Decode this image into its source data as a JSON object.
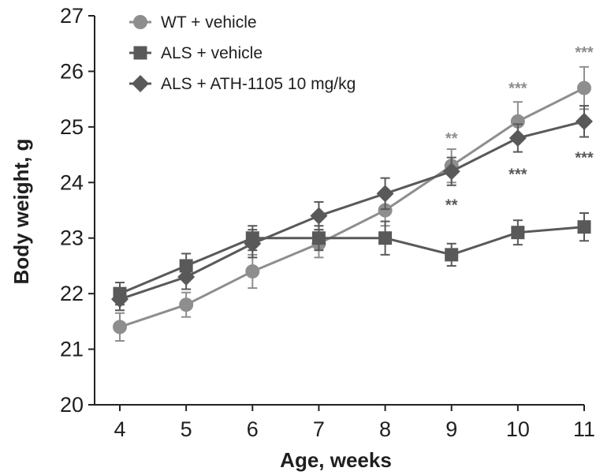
{
  "chart_data": {
    "type": "line",
    "title": "",
    "xlabel": "Age, weeks",
    "ylabel": "Body weight, g",
    "xlim": [
      4,
      11
    ],
    "ylim": [
      20,
      27
    ],
    "x": [
      4,
      5,
      6,
      7,
      8,
      9,
      10,
      11
    ],
    "xticks": [
      "4",
      "5",
      "6",
      "7",
      "8",
      "9",
      "10",
      "11"
    ],
    "yticks": [
      "20",
      "21",
      "22",
      "23",
      "24",
      "25",
      "26",
      "27"
    ],
    "grid": false,
    "legend_position": "top-left",
    "series": [
      {
        "name": "WT + vehicle",
        "marker": "circle",
        "color": "#8e8e8e",
        "values": [
          21.4,
          21.8,
          22.4,
          22.9,
          23.5,
          24.3,
          25.1,
          25.7
        ],
        "errors": [
          0.25,
          0.22,
          0.3,
          0.25,
          0.28,
          0.3,
          0.35,
          0.38
        ]
      },
      {
        "name": "ALS + vehicle",
        "marker": "square",
        "color": "#595959",
        "values": [
          22.0,
          22.5,
          23.0,
          23.0,
          23.0,
          22.7,
          23.1,
          23.2
        ],
        "errors": [
          0.2,
          0.22,
          0.22,
          0.22,
          0.3,
          0.2,
          0.22,
          0.25
        ]
      },
      {
        "name": "ALS + ATH-1105 10 mg/kg",
        "marker": "diamond",
        "color": "#595959",
        "values": [
          21.9,
          22.3,
          22.9,
          23.4,
          23.8,
          24.2,
          24.8,
          25.1
        ],
        "errors": [
          0.2,
          0.22,
          0.25,
          0.25,
          0.28,
          0.25,
          0.25,
          0.28
        ]
      }
    ],
    "annotations": [
      {
        "text": "**",
        "x": 9,
        "y": 24.8,
        "color": "#8e8e8e"
      },
      {
        "text": "**",
        "x": 9,
        "y": 23.6,
        "color": "#595959"
      },
      {
        "text": "***",
        "x": 10,
        "y": 25.7,
        "color": "#8e8e8e"
      },
      {
        "text": "***",
        "x": 10,
        "y": 24.15,
        "color": "#595959"
      },
      {
        "text": "***",
        "x": 11,
        "y": 26.35,
        "color": "#8e8e8e"
      },
      {
        "text": "***",
        "x": 11,
        "y": 24.45,
        "color": "#595959"
      }
    ]
  }
}
